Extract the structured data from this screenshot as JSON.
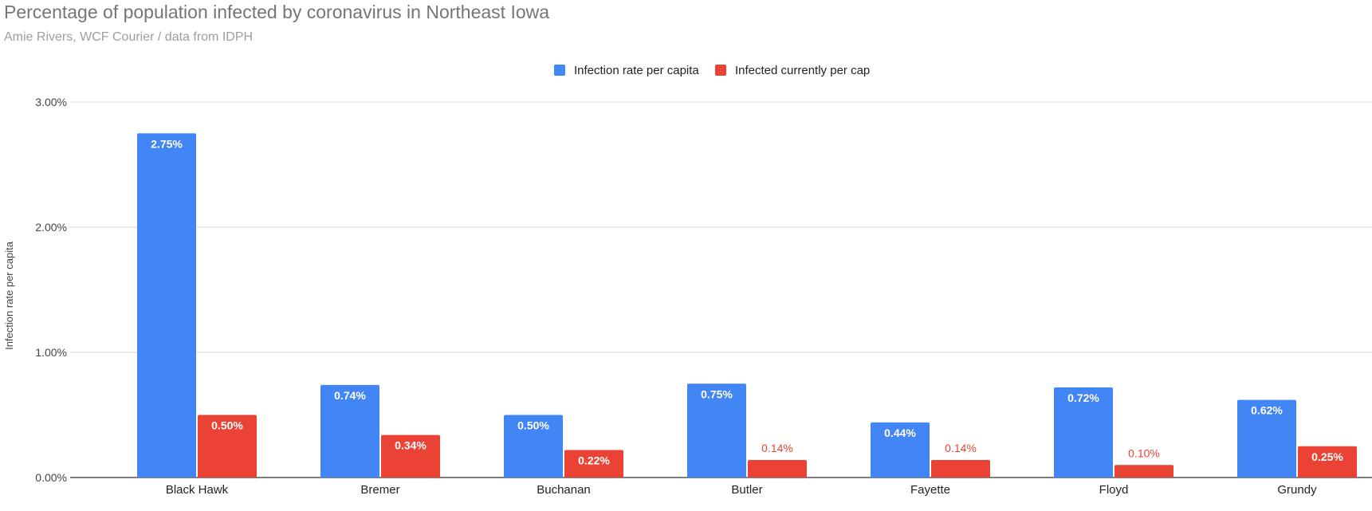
{
  "chart_data": {
    "type": "bar",
    "title": "Percentage of population infected by coronavirus in Northeast Iowa",
    "subtitle": "Amie Rivers, WCF Courier / data from IDPH",
    "ylabel": "Infection rate per capita",
    "xlabel": "",
    "ylim": [
      0,
      3
    ],
    "yticks": [
      "0.00%",
      "1.00%",
      "2.00%",
      "3.00%"
    ],
    "ytick_values": [
      0,
      1,
      2,
      3
    ],
    "grid": true,
    "legend_position": "top",
    "categories": [
      "Black Hawk",
      "Bremer",
      "Buchanan",
      "Butler",
      "Fayette",
      "Floyd",
      "Grundy"
    ],
    "series": [
      {
        "name": "Infection rate per capita",
        "color": "#4285f4",
        "values": [
          2.75,
          0.74,
          0.5,
          0.75,
          0.44,
          0.72,
          0.62
        ],
        "labels": [
          "2.75%",
          "0.74%",
          "0.50%",
          "0.75%",
          "0.44%",
          "0.72%",
          "0.62%"
        ]
      },
      {
        "name": "Infected currently per cap",
        "color": "#ea4335",
        "values": [
          0.5,
          0.34,
          0.22,
          0.14,
          0.14,
          0.1,
          0.25
        ],
        "labels": [
          "0.50%",
          "0.34%",
          "0.22%",
          "0.14%",
          "0.14%",
          "0.10%",
          "0.25%"
        ]
      }
    ]
  }
}
